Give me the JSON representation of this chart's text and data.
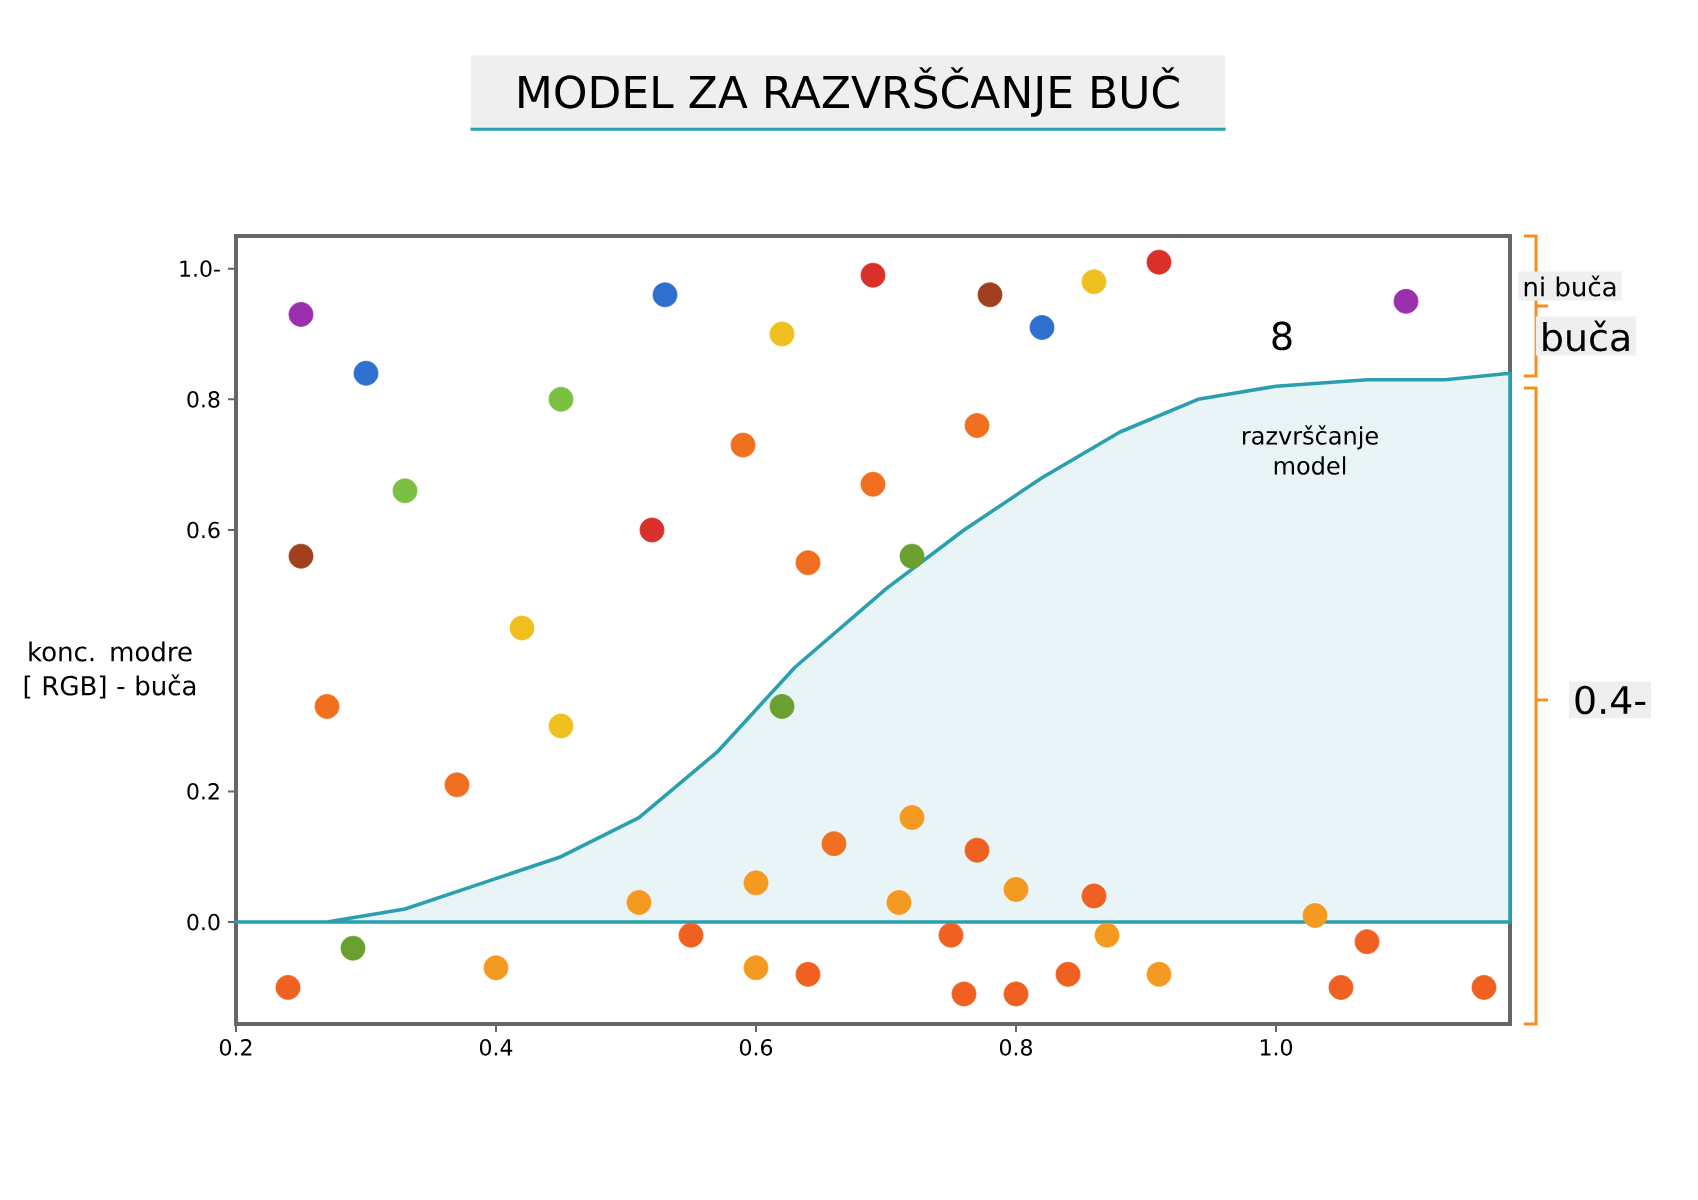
{
  "chart_data": {
    "type": "scatter",
    "title": "MODEL ZA RAZVRŠČANJE BUČ",
    "ylabel": "konc. modre [ RGB] - buča",
    "xlim": [
      0.2,
      1.18
    ],
    "ylim": [
      -0.156,
      1.05
    ],
    "xticks": [
      {
        "value": 0.2,
        "label": "0.2"
      },
      {
        "value": 0.4,
        "label": "0.4"
      },
      {
        "value": 0.6,
        "label": "0.6"
      },
      {
        "value": 0.8,
        "label": "0.8"
      },
      {
        "value": 1.0,
        "label": "1.0"
      }
    ],
    "yticks": [
      {
        "value": 0.0,
        "label": "0.0"
      },
      {
        "value": 0.2,
        "label": "0.2"
      },
      {
        "value": 0.6,
        "label": "0.6"
      },
      {
        "value": 0.8,
        "label": "0.8"
      },
      {
        "value": 1.0,
        "label": "1.0-"
      }
    ],
    "series": [
      {
        "type": "area",
        "color": "#2a9faf",
        "x": [
          0.2,
          0.27,
          0.33,
          0.39,
          0.45,
          0.51,
          0.57,
          0.63,
          0.7,
          0.76,
          0.82,
          0.88,
          0.94,
          1.0,
          1.07,
          1.13,
          1.18
        ],
        "values": [
          0.0,
          0.0,
          0.02,
          0.06,
          0.1,
          0.16,
          0.26,
          0.39,
          0.51,
          0.6,
          0.68,
          0.75,
          0.8,
          0.82,
          0.83,
          0.83,
          0.84
        ]
      },
      {
        "marker": "circle",
        "x": [
          0.24,
          0.4,
          0.51,
          0.55,
          0.6,
          0.6,
          0.64,
          0.71,
          0.72,
          0.75,
          0.76,
          0.77,
          0.8,
          0.8,
          0.84,
          0.86,
          0.87,
          0.91,
          1.03,
          1.05,
          1.07,
          1.16
        ],
        "values": [
          -0.1,
          -0.07,
          0.03,
          -0.02,
          -0.07,
          0.06,
          -0.08,
          0.03,
          0.16,
          -0.02,
          -0.11,
          0.11,
          -0.11,
          0.05,
          -0.08,
          0.04,
          -0.02,
          -0.08,
          0.01,
          -0.1,
          -0.03,
          -0.1
        ],
        "colors": [
          "#f06020",
          "#f59a20",
          "#f59a20",
          "#f06020",
          "#f59a20",
          "#f59a20",
          "#f06020",
          "#f59a20",
          "#f59a20",
          "#f06020",
          "#f06020",
          "#f06020",
          "#f06020",
          "#f59a20",
          "#f06020",
          "#f06020",
          "#f59a20",
          "#f59a20",
          "#f59a20",
          "#f06020",
          "#f06020",
          "#f06020"
        ]
      },
      {
        "marker": "circle",
        "x": [
          0.25,
          0.45,
          0.33,
          0.3,
          0.53,
          0.82,
          0.62,
          0.86,
          0.69,
          0.52,
          0.78,
          0.25,
          0.91,
          0.59,
          0.27,
          0.69,
          0.64,
          0.66,
          0.77,
          0.42,
          0.45,
          0.37,
          0.72,
          0.62,
          0.29,
          1.1
        ],
        "values": [
          0.93,
          0.8,
          0.66,
          0.84,
          0.96,
          0.91,
          0.9,
          0.98,
          0.99,
          0.6,
          0.96,
          0.56,
          1.01,
          0.73,
          0.33,
          0.67,
          0.55,
          0.12,
          0.76,
          0.45,
          0.3,
          0.21,
          0.56,
          0.33,
          -0.04,
          0.95
        ],
        "colors": [
          "#9b2fae",
          "#7cc043",
          "#7cc043",
          "#2f6fd0",
          "#2f6fd0",
          "#2f6fd0",
          "#f0c020",
          "#f0c020",
          "#d9302a",
          "#d9302a",
          "#a0401f",
          "#a0401f",
          "#d9302a",
          "#f07020",
          "#f07020",
          "#f07020",
          "#f07020",
          "#f07020",
          "#f07020",
          "#f0c020",
          "#f0c020",
          "#f07020",
          "#6aa030",
          "#6aa030",
          "#6aa030",
          "#9b2fae"
        ]
      }
    ],
    "annotations": [
      "razvrščanje model",
      "8",
      "ni buča",
      "buča",
      "0.4-"
    ]
  }
}
